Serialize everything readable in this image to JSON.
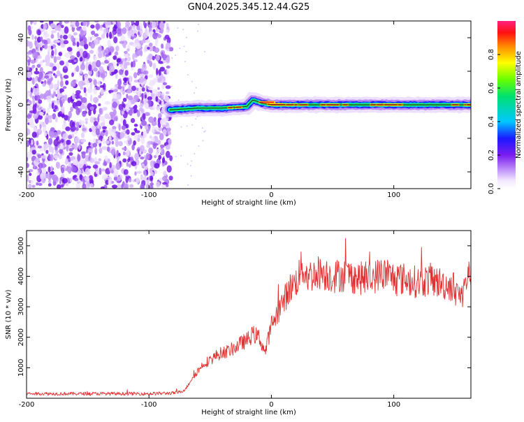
{
  "title": "GN04.2025.345.12.44.G25",
  "chart_data": [
    {
      "type": "heatmap",
      "xlabel": "Height of straight line (km)",
      "ylabel": "Frequency (Hz)",
      "xlim": [
        -200,
        163
      ],
      "ylim": [
        -50,
        50
      ],
      "xticks": [
        -200,
        -100,
        0,
        100
      ],
      "xtick_labels": [
        "-200",
        "-100",
        "0",
        "100"
      ],
      "yticks": [
        -40,
        -20,
        0,
        20,
        40
      ],
      "ytick_labels": [
        "-40",
        "-20",
        "0",
        "20",
        "40"
      ],
      "noise_region_end_km": -82,
      "signal_start_km": -83,
      "signal_track": [
        {
          "x": -83,
          "freq": -3
        },
        {
          "x": -60,
          "freq": -2
        },
        {
          "x": -40,
          "freq": -2
        },
        {
          "x": -20,
          "freq": -1
        },
        {
          "x": -15,
          "freq": 3
        },
        {
          "x": -8,
          "freq": 1
        },
        {
          "x": 0,
          "freq": 0
        },
        {
          "x": 100,
          "freq": 0
        },
        {
          "x": 163,
          "freq": 0
        }
      ],
      "colorbar": {
        "label": "Normalized spectral amplitude",
        "range": [
          0,
          1
        ],
        "ticks": [
          0.0,
          0.2,
          0.4,
          0.6,
          0.8
        ],
        "tick_labels": [
          "0.0",
          "0.2",
          "0.4",
          "0.6",
          "0.8"
        ]
      }
    },
    {
      "type": "line",
      "xlabel": "Height of straight line (km)",
      "ylabel": "SNR (10 * v/v)",
      "xlim": [
        -200,
        163
      ],
      "ylim": [
        0,
        5500
      ],
      "xticks": [
        -200,
        -100,
        0,
        100
      ],
      "xtick_labels": [
        "-200",
        "-100",
        "0",
        "100"
      ],
      "yticks": [
        1000,
        2000,
        3000,
        4000,
        5000
      ],
      "ytick_labels": [
        "1000",
        "2000",
        "3000",
        "4000",
        "5000"
      ],
      "series": [
        {
          "name": "SNR",
          "color": "#e03030",
          "x": [
            -200,
            -180,
            -160,
            -140,
            -120,
            -100,
            -90,
            -80,
            -75,
            -70,
            -65,
            -60,
            -55,
            -50,
            -45,
            -40,
            -35,
            -30,
            -25,
            -20,
            -15,
            -10,
            -5,
            0,
            5,
            10,
            15,
            20,
            25,
            30,
            40,
            50,
            60,
            70,
            80,
            90,
            100,
            110,
            120,
            130,
            140,
            150,
            155,
            160,
            163
          ],
          "values": [
            150,
            150,
            150,
            150,
            150,
            150,
            160,
            170,
            200,
            300,
            650,
            900,
            1150,
            1250,
            1400,
            1500,
            1550,
            1650,
            1800,
            1900,
            2100,
            2000,
            1500,
            2400,
            2800,
            3200,
            3600,
            3800,
            4300,
            4000,
            4150,
            4000,
            4050,
            3950,
            3900,
            4100,
            3950,
            3900,
            3800,
            3900,
            3750,
            3650,
            3300,
            3950,
            4100
          ]
        }
      ]
    }
  ]
}
